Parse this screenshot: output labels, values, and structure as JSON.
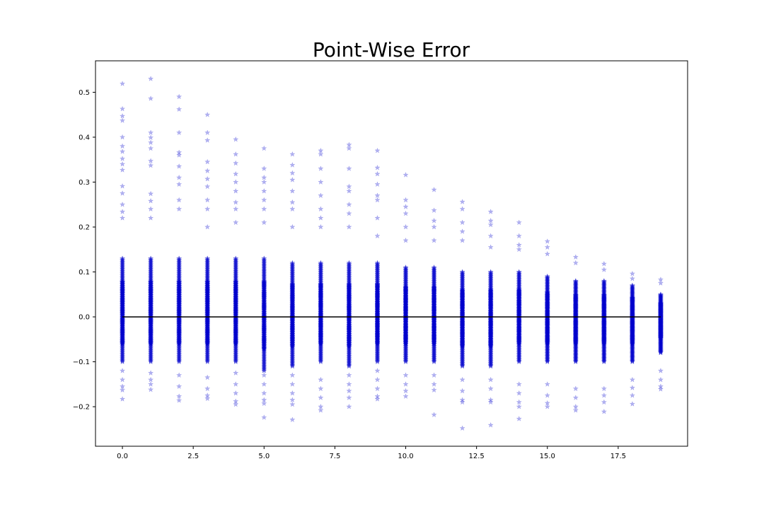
{
  "chart_data": {
    "type": "scatter",
    "title": "Point-Wise Error",
    "xlabel": "",
    "ylabel": "",
    "xlim": [
      -0.95,
      19.95
    ],
    "ylim": [
      -0.288,
      0.57
    ],
    "xticks": [
      0.0,
      2.5,
      5.0,
      7.5,
      10.0,
      12.5,
      15.0,
      17.5
    ],
    "xtick_labels": [
      "0.0",
      "2.5",
      "5.0",
      "7.5",
      "10.0",
      "12.5",
      "15.0",
      "17.5"
    ],
    "yticks": [
      -0.2,
      -0.1,
      0.0,
      0.1,
      0.2,
      0.3,
      0.4,
      0.5
    ],
    "ytick_labels": [
      "−0.2",
      "−0.1",
      "0.0",
      "0.1",
      "0.2",
      "0.3",
      "0.4",
      "0.5"
    ],
    "grid": false,
    "legend": "none",
    "marker": "star",
    "marker_color": "#0000cc",
    "reference_line": {
      "y": 0.0,
      "color": "#000000"
    },
    "series": [
      {
        "x": [
          0,
          1,
          2,
          3,
          4,
          5,
          6,
          7,
          8,
          9,
          10,
          11,
          12,
          13,
          14,
          15,
          16,
          17,
          18,
          19
        ],
        "y_min": [
          -0.183,
          -0.162,
          -0.186,
          -0.182,
          -0.195,
          -0.224,
          -0.229,
          -0.208,
          -0.2,
          -0.183,
          -0.177,
          -0.218,
          -0.248,
          -0.241,
          -0.227,
          -0.2,
          -0.208,
          -0.211,
          -0.194,
          -0.161
        ],
        "y_max": [
          0.519,
          0.53,
          0.49,
          0.45,
          0.395,
          0.375,
          0.362,
          0.37,
          0.383,
          0.37,
          0.316,
          0.283,
          0.256,
          0.234,
          0.21,
          0.168,
          0.133,
          0.118,
          0.096,
          0.083
        ],
        "dense_min": [
          -0.1,
          -0.1,
          -0.1,
          -0.1,
          -0.1,
          -0.12,
          -0.11,
          -0.1,
          -0.11,
          -0.1,
          -0.1,
          -0.1,
          -0.11,
          -0.11,
          -0.1,
          -0.1,
          -0.1,
          -0.1,
          -0.1,
          -0.08
        ],
        "dense_max": [
          0.13,
          0.13,
          0.13,
          0.13,
          0.13,
          0.13,
          0.12,
          0.12,
          0.12,
          0.12,
          0.11,
          0.11,
          0.1,
          0.1,
          0.1,
          0.09,
          0.08,
          0.08,
          0.07,
          0.05
        ],
        "outliers_high": [
          [
            0.519,
            0.463,
            0.447,
            0.437,
            0.4,
            0.38,
            0.368,
            0.352,
            0.34,
            0.327,
            0.291,
            0.275,
            0.25,
            0.234,
            0.22
          ],
          [
            0.53,
            0.486,
            0.41,
            0.399,
            0.388,
            0.375,
            0.347,
            0.337,
            0.274,
            0.258,
            0.24,
            0.22
          ],
          [
            0.49,
            0.462,
            0.41,
            0.366,
            0.36,
            0.335,
            0.31,
            0.295,
            0.26,
            0.24
          ],
          [
            0.45,
            0.41,
            0.393,
            0.345,
            0.325,
            0.307,
            0.29,
            0.26,
            0.24,
            0.2
          ],
          [
            0.395,
            0.362,
            0.342,
            0.318,
            0.3,
            0.28,
            0.255,
            0.24,
            0.21
          ],
          [
            0.375,
            0.33,
            0.31,
            0.3,
            0.28,
            0.26,
            0.24,
            0.21
          ],
          [
            0.362,
            0.338,
            0.32,
            0.305,
            0.28,
            0.255,
            0.24,
            0.2
          ],
          [
            0.37,
            0.362,
            0.33,
            0.3,
            0.27,
            0.24,
            0.22,
            0.2
          ],
          [
            0.383,
            0.375,
            0.33,
            0.29,
            0.28,
            0.25,
            0.23,
            0.2
          ],
          [
            0.37,
            0.332,
            0.318,
            0.295,
            0.27,
            0.26,
            0.22,
            0.18
          ],
          [
            0.316,
            0.26,
            0.245,
            0.23,
            0.2,
            0.17
          ],
          [
            0.283,
            0.237,
            0.214,
            0.2,
            0.17
          ],
          [
            0.256,
            0.24,
            0.21,
            0.19,
            0.17
          ],
          [
            0.234,
            0.214,
            0.205,
            0.18,
            0.155
          ],
          [
            0.21,
            0.18,
            0.16,
            0.15
          ],
          [
            0.168,
            0.155,
            0.14
          ],
          [
            0.133,
            0.12
          ],
          [
            0.118,
            0.105
          ],
          [
            0.096,
            0.085
          ],
          [
            0.083,
            0.075
          ]
        ],
        "outliers_low": [
          [
            -0.183,
            -0.163,
            -0.155,
            -0.14,
            -0.12
          ],
          [
            -0.162,
            -0.15,
            -0.14,
            -0.125
          ],
          [
            -0.186,
            -0.177,
            -0.155,
            -0.13
          ],
          [
            -0.182,
            -0.175,
            -0.16,
            -0.135
          ],
          [
            -0.195,
            -0.188,
            -0.17,
            -0.15,
            -0.125
          ],
          [
            -0.224,
            -0.193,
            -0.185,
            -0.17,
            -0.15,
            -0.13
          ],
          [
            -0.229,
            -0.195,
            -0.185,
            -0.17,
            -0.15,
            -0.13
          ],
          [
            -0.208,
            -0.2,
            -0.18,
            -0.16,
            -0.14
          ],
          [
            -0.2,
            -0.18,
            -0.165,
            -0.15,
            -0.13
          ],
          [
            -0.183,
            -0.177,
            -0.16,
            -0.14,
            -0.12
          ],
          [
            -0.177,
            -0.165,
            -0.15,
            -0.13
          ],
          [
            -0.218,
            -0.163,
            -0.15,
            -0.13
          ],
          [
            -0.248,
            -0.19,
            -0.185,
            -0.165,
            -0.14
          ],
          [
            -0.241,
            -0.19,
            -0.185,
            -0.16,
            -0.14
          ],
          [
            -0.227,
            -0.2,
            -0.19,
            -0.17,
            -0.15
          ],
          [
            -0.2,
            -0.192,
            -0.175,
            -0.15
          ],
          [
            -0.208,
            -0.2,
            -0.18,
            -0.16
          ],
          [
            -0.211,
            -0.19,
            -0.175,
            -0.16
          ],
          [
            -0.194,
            -0.175,
            -0.158,
            -0.14
          ],
          [
            -0.161,
            -0.155,
            -0.14,
            -0.12
          ]
        ]
      }
    ]
  }
}
